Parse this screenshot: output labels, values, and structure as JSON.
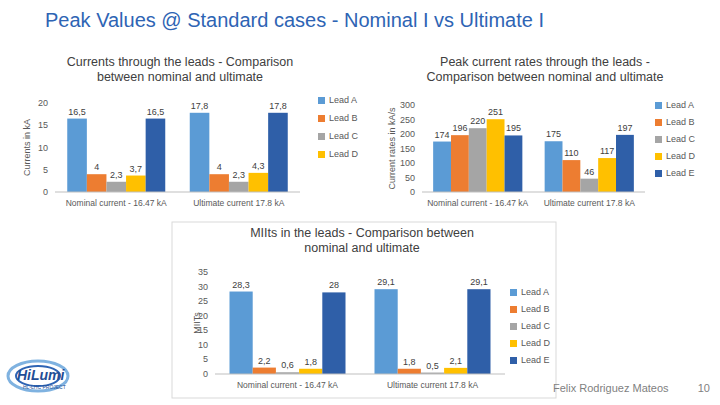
{
  "title": "Peak Values @ Standard cases - Nominal I vs Ultimate I",
  "footer": {
    "author": "Felix Rodriguez Mateos",
    "page": "10"
  },
  "logo": {
    "text": "HiLumi",
    "subtitle": "HL-LHC PROJECT"
  },
  "chart_data": [
    {
      "type": "bar",
      "title": "Currents through the leads - Comparison between nominal and ultimate",
      "y_label": "Currents in kA",
      "categories": [
        "Nominal current - 16.47 kA",
        "Ultimate current 17.8 kA"
      ],
      "ylim": [
        0,
        20
      ],
      "yticks": [
        0,
        5,
        10,
        15,
        20
      ],
      "grid": false,
      "legend": "right",
      "data_labels": true,
      "series": [
        {
          "name": "Lead A",
          "color": "#5b9bd5",
          "values": [
            16.5,
            17.8
          ],
          "value_labels": [
            "16,5",
            "17,8"
          ]
        },
        {
          "name": "Lead B",
          "color": "#ed7d31",
          "values": [
            4,
            4
          ],
          "value_labels": [
            "4",
            "4"
          ]
        },
        {
          "name": "Lead C",
          "color": "#a5a5a5",
          "values": [
            2.3,
            2.3
          ],
          "value_labels": [
            "2,3",
            "2,3"
          ]
        },
        {
          "name": "Lead D",
          "color": "#ffc000",
          "values": [
            3.7,
            4.3
          ],
          "value_labels": [
            "3,7",
            "4,3"
          ]
        },
        {
          "name": null,
          "color": "#2f5fa8",
          "values": [
            16.5,
            17.8
          ],
          "value_labels": [
            "16,5",
            "17,8"
          ]
        }
      ]
    },
    {
      "type": "bar",
      "title": "Peak current rates through the leads - Comparison between nominal and ultimate",
      "y_label": "Current rates in kA/s",
      "categories": [
        "Nominal current - 16.47 kA",
        "Ultimate current 17.8 kA"
      ],
      "ylim": [
        0,
        300
      ],
      "yticks": [
        0,
        50,
        100,
        150,
        200,
        250,
        300
      ],
      "grid": false,
      "legend": "right",
      "data_labels": true,
      "series": [
        {
          "name": "Lead A",
          "color": "#5b9bd5",
          "values": [
            174,
            175
          ]
        },
        {
          "name": "Lead B",
          "color": "#ed7d31",
          "values": [
            196,
            110
          ]
        },
        {
          "name": "Lead C",
          "color": "#a5a5a5",
          "values": [
            220,
            46
          ]
        },
        {
          "name": "Lead D",
          "color": "#ffc000",
          "values": [
            251,
            117
          ]
        },
        {
          "name": "Lead E",
          "color": "#2f5fa8",
          "values": [
            195,
            197
          ]
        }
      ]
    },
    {
      "type": "bar",
      "title": "MIIts in the leads - Comparison between nominal and ultimate",
      "y_label": "MIITs",
      "categories": [
        "Nominal current - 16.47 kA",
        "Ultimate current 17.8 kA"
      ],
      "ylim": [
        0,
        35
      ],
      "yticks": [
        0,
        5,
        10,
        15,
        20,
        25,
        30,
        35
      ],
      "grid": false,
      "legend": "right",
      "data_labels": true,
      "series": [
        {
          "name": "Lead A",
          "color": "#5b9bd5",
          "values": [
            28.3,
            29.1
          ],
          "value_labels": [
            "28,3",
            "29,1"
          ]
        },
        {
          "name": "Lead B",
          "color": "#ed7d31",
          "values": [
            2.2,
            1.8
          ],
          "value_labels": [
            "2,2",
            "1,8"
          ]
        },
        {
          "name": "Lead C",
          "color": "#a5a5a5",
          "values": [
            0.6,
            0.5
          ],
          "value_labels": [
            "0,6",
            "0,5"
          ]
        },
        {
          "name": "Lead D",
          "color": "#ffc000",
          "values": [
            1.8,
            2.1
          ],
          "value_labels": [
            "1,8",
            "2,1"
          ]
        },
        {
          "name": "Lead E",
          "color": "#2f5fa8",
          "values": [
            28,
            29.1
          ],
          "value_labels": [
            "28",
            "29,1"
          ]
        }
      ]
    }
  ]
}
